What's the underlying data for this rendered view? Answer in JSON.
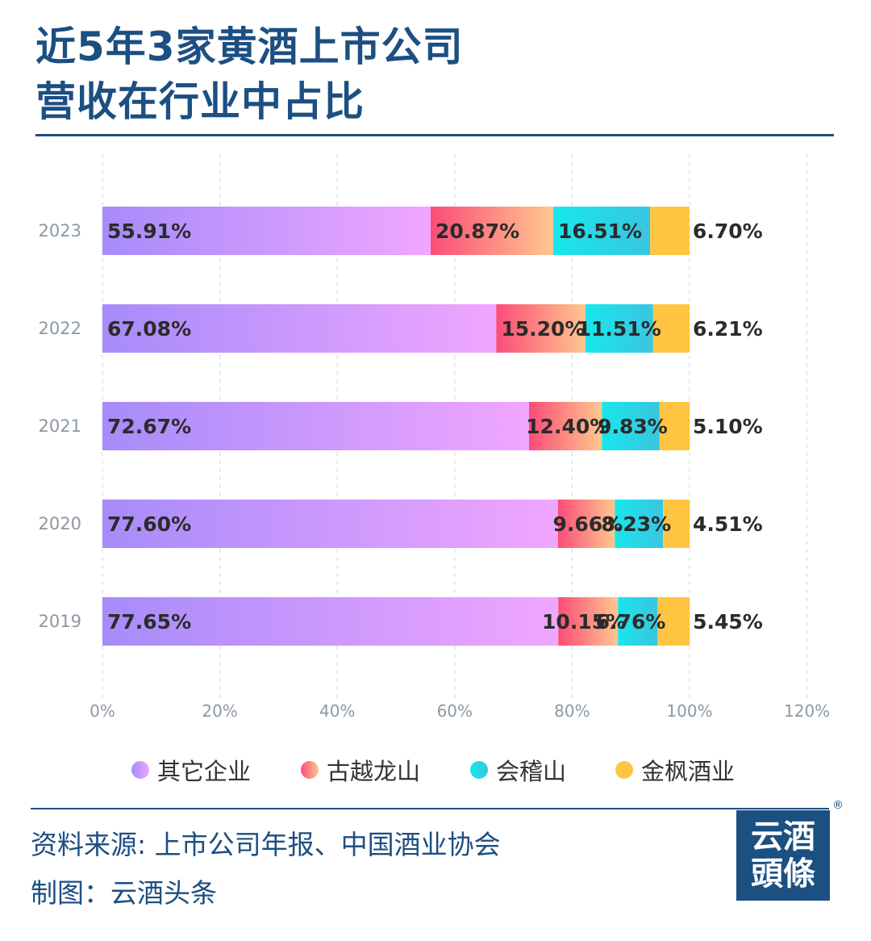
{
  "title": {
    "line1": "近5年3家黄酒上市公司",
    "line2": "营收在行业中占比"
  },
  "chart_data": {
    "type": "bar",
    "orientation": "horizontal",
    "stacked": true,
    "categories": [
      "2023",
      "2022",
      "2021",
      "2020",
      "2019"
    ],
    "series": [
      {
        "name": "其它企业",
        "values": [
          55.91,
          67.08,
          72.67,
          77.6,
          77.65
        ],
        "labels": [
          "55.91%",
          "67.08%",
          "72.67%",
          "77.60%",
          "77.65%"
        ],
        "color_start": "#a78bfa",
        "color_end": "#f0a6ff"
      },
      {
        "name": "古越龙山",
        "values": [
          20.87,
          15.2,
          12.4,
          9.66,
          10.15
        ],
        "labels": [
          "20.87%",
          "15.20%",
          "12.40%",
          "9.66%",
          "10.15%"
        ],
        "color_start": "#fb4d78",
        "color_end": "#ffc78e"
      },
      {
        "name": "会稽山",
        "values": [
          16.51,
          11.51,
          9.83,
          8.23,
          6.76
        ],
        "labels": [
          "16.51%",
          "11.51%",
          "9.83%",
          "8.23%",
          "6.76%"
        ],
        "color_start": "#18e7ec",
        "color_end": "#3ac5e0"
      },
      {
        "name": "金枫酒业",
        "values": [
          6.7,
          6.21,
          5.1,
          4.51,
          5.45
        ],
        "labels": [
          "6.70%",
          "6.21%",
          "5.10%",
          "4.51%",
          "5.45%"
        ],
        "color_start": "#ffc542",
        "color_end": "#ffc542"
      }
    ],
    "x_ticks": [
      "0%",
      "20%",
      "40%",
      "60%",
      "80%",
      "100%",
      "120%"
    ],
    "xlim": [
      0,
      120
    ],
    "grid": "vertical-dashed",
    "legend_position": "bottom"
  },
  "footer": {
    "source": "资料来源: 上市公司年报、中国酒业协会",
    "maker": "制图：云酒头条"
  },
  "logo": {
    "line1": "云酒",
    "line2": "頭條",
    "reg": "®"
  }
}
